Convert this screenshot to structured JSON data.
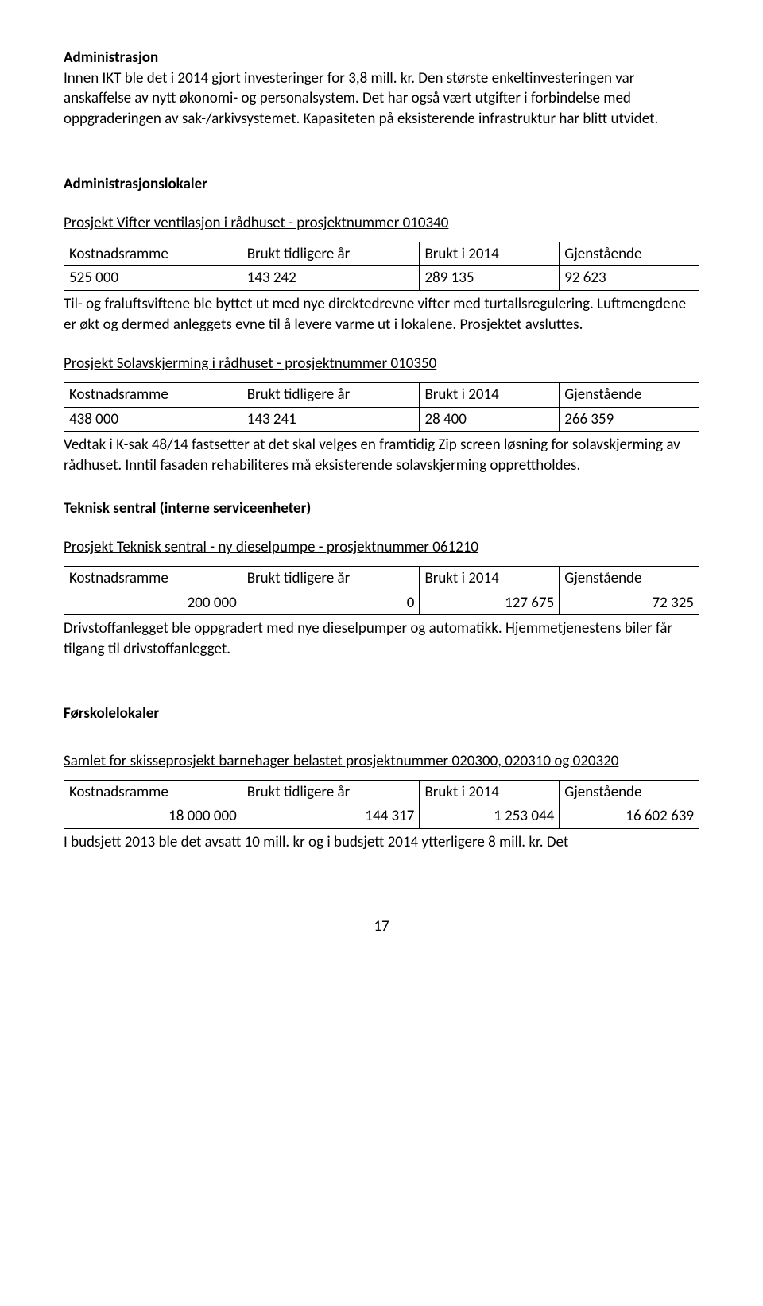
{
  "h1": "Administrasjon",
  "intro": "Innen IKT ble det i 2014 gjort investeringer for 3,8 mill. kr. Den største enkeltinvesteringen var anskaffelse av nytt økonomi- og personalsystem. Det har også vært utgifter i forbindelse med oppgraderingen av sak-/arkivsystemet. Kapasiteten på eksisterende infrastruktur har blitt utvidet.",
  "h2": "Administrasjonslokaler",
  "p1_title": "Prosjekt Vifter ventilasjon i rådhuset - prosjektnummer 010340",
  "table_headers": {
    "c1": "Kostnadsramme",
    "c2": "Brukt tidligere år",
    "c3": "Brukt i 2014",
    "c4": "Gjenstående"
  },
  "p1_row": {
    "c1": "525 000",
    "c2": "143 242",
    "c3": "289 135",
    "c4": "92 623"
  },
  "p1_text": "Til- og fraluftsviftene ble byttet ut med nye direktedrevne vifter med turtallsregulering. Luftmengdene er økt og dermed anleggets evne til å levere varme ut i lokalene. Prosjektet avsluttes.",
  "p2_title": "Prosjekt Solavskjerming i rådhuset - prosjektnummer 010350",
  "p2_row": {
    "c1": "438 000",
    "c2": "143 241",
    "c3": "28 400",
    "c4": "266 359"
  },
  "p2_text": "Vedtak i K-sak 48/14 fastsetter at det skal velges en framtidig Zip screen løsning for solavskjerming av rådhuset. Inntil fasaden rehabiliteres må eksisterende solavskjerming opprettholdes.",
  "h3": "Teknisk sentral (interne serviceenheter)",
  "p3_title": "Prosjekt Teknisk sentral - ny dieselpumpe - prosjektnummer 061210",
  "p3_row": {
    "c1": "200 000",
    "c2": "0",
    "c3": "127 675",
    "c4": "72 325"
  },
  "p3_text": "Drivstoffanlegget ble oppgradert med nye dieselpumper og automatikk. Hjemmetjenestens biler får tilgang til drivstoffanlegget.",
  "h4": "Førskolelokaler",
  "p4_title": "Samlet for skisseprosjekt barnehager belastet prosjektnummer 020300, 020310 og 020320",
  "p4_row": {
    "c1": "18 000 000",
    "c2": "144 317",
    "c3": "1 253 044",
    "c4": "16 602 639"
  },
  "p4_text": "I budsjett 2013 ble det avsatt 10 mill. kr og i budsjett 2014 ytterligere 8 mill. kr. Det",
  "page_number": "17",
  "col_widths": {
    "c1": "28%",
    "c2": "28%",
    "c3": "22%",
    "c4": "22%"
  }
}
